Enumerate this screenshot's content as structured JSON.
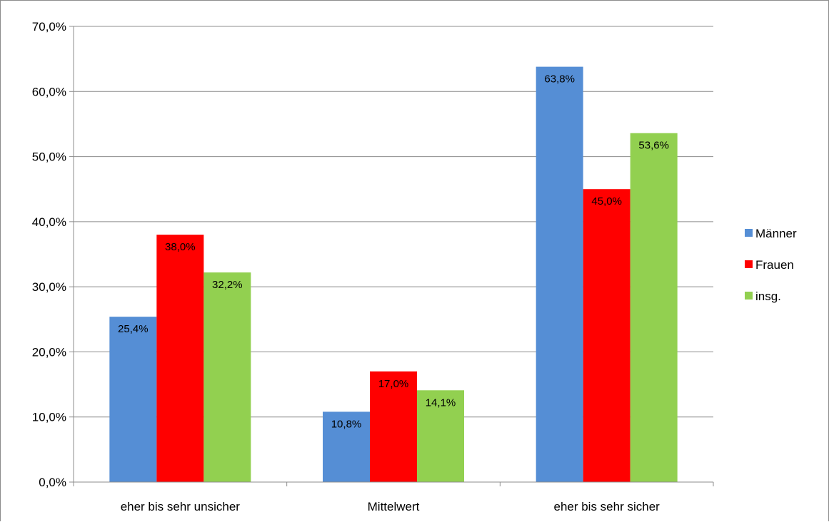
{
  "chart_data": {
    "type": "bar",
    "title": "",
    "xlabel": "",
    "ylabel": "",
    "categories": [
      "eher bis sehr unsicher",
      "Mittelwert",
      "eher bis sehr sicher"
    ],
    "series": [
      {
        "name": "Männer",
        "color": "#558ed5",
        "values": [
          25.4,
          10.8,
          63.8
        ],
        "labels": [
          "25,4%",
          "10,8%",
          "63,8%"
        ]
      },
      {
        "name": "Frauen",
        "color": "#ff0000",
        "values": [
          38.0,
          17.0,
          45.0
        ],
        "labels": [
          "38,0%",
          "17,0%",
          "45,0%"
        ]
      },
      {
        "name": "insg.",
        "color": "#92d050",
        "values": [
          32.2,
          14.1,
          53.6
        ],
        "labels": [
          "32,2%",
          "14,1%",
          "53,6%"
        ]
      }
    ],
    "ylim": [
      0,
      70
    ],
    "yticks": [
      0,
      10,
      20,
      30,
      40,
      50,
      60,
      70
    ],
    "ytick_labels": [
      "0,0%",
      "10,0%",
      "20,0%",
      "30,0%",
      "40,0%",
      "50,0%",
      "60,0%",
      "70,0%"
    ],
    "grid": true,
    "legend_position": "right"
  }
}
